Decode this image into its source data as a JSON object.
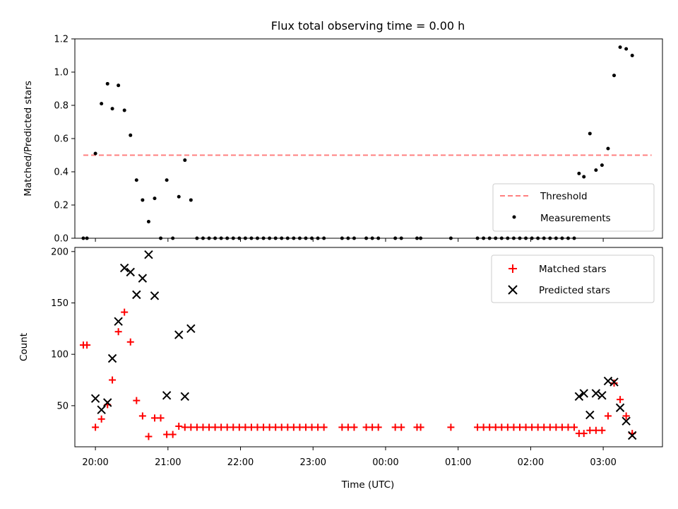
{
  "chart_data": [
    {
      "type": "scatter",
      "title": "Flux total observing time = 0.00 h",
      "xlabel": "",
      "ylabel": "Matched/Predicted stars",
      "xlim": [
        "19:43",
        "03:49"
      ],
      "ylim": [
        0,
        1.2
      ],
      "yticks": [
        "0.0",
        "0.2",
        "0.4",
        "0.6",
        "0.8",
        "1.0",
        "1.2"
      ],
      "x_tick_positions": [
        "20:00",
        "21:00",
        "22:00",
        "23:00",
        "00:00",
        "01:00",
        "02:00",
        "03:00"
      ],
      "grid": false,
      "legend_position": "lower-right",
      "threshold": {
        "name": "Threshold",
        "value": 0.5,
        "x_start": "19:50",
        "x_end": "03:40",
        "color": "#ff8080"
      },
      "series": [
        {
          "name": "Measurements",
          "color": "#000000",
          "points": [
            [
              "19:50",
              0
            ],
            [
              "19:53",
              0
            ],
            [
              "20:00",
              0.51
            ],
            [
              "20:05",
              0.81
            ],
            [
              "20:10",
              0.93
            ],
            [
              "20:14",
              0.78
            ],
            [
              "20:19",
              0.92
            ],
            [
              "20:24",
              0.77
            ],
            [
              "20:29",
              0.62
            ],
            [
              "20:34",
              0.35
            ],
            [
              "20:39",
              0.23
            ],
            [
              "20:44",
              0.1
            ],
            [
              "20:49",
              0.24
            ],
            [
              "20:54",
              0
            ],
            [
              "20:59",
              0.35
            ],
            [
              "21:04",
              0
            ],
            [
              "21:09",
              0.25
            ],
            [
              "21:14",
              0.47
            ],
            [
              "21:19",
              0.23
            ],
            [
              "21:24",
              0
            ],
            [
              "21:29",
              0
            ],
            [
              "21:34",
              0
            ],
            [
              "21:39",
              0
            ],
            [
              "21:44",
              0
            ],
            [
              "21:49",
              0
            ],
            [
              "21:54",
              0
            ],
            [
              "21:59",
              0
            ],
            [
              "22:04",
              0
            ],
            [
              "22:09",
              0
            ],
            [
              "22:14",
              0
            ],
            [
              "22:19",
              0
            ],
            [
              "22:24",
              0
            ],
            [
              "22:29",
              0
            ],
            [
              "22:34",
              0
            ],
            [
              "22:39",
              0
            ],
            [
              "22:44",
              0
            ],
            [
              "22:49",
              0
            ],
            [
              "22:54",
              0
            ],
            [
              "22:59",
              0
            ],
            [
              "23:04",
              0
            ],
            [
              "23:09",
              0
            ],
            [
              "23:24",
              0
            ],
            [
              "23:29",
              0
            ],
            [
              "23:34",
              0
            ],
            [
              "23:44",
              0
            ],
            [
              "23:49",
              0
            ],
            [
              "23:54",
              0
            ],
            [
              "00:08",
              0
            ],
            [
              "00:13",
              0
            ],
            [
              "00:26",
              0
            ],
            [
              "00:29",
              0
            ],
            [
              "00:54",
              0
            ],
            [
              "01:16",
              0
            ],
            [
              "01:21",
              0
            ],
            [
              "01:26",
              0
            ],
            [
              "01:31",
              0
            ],
            [
              "01:36",
              0
            ],
            [
              "01:41",
              0
            ],
            [
              "01:46",
              0
            ],
            [
              "01:51",
              0
            ],
            [
              "01:56",
              0
            ],
            [
              "02:01",
              0
            ],
            [
              "02:06",
              0
            ],
            [
              "02:11",
              0
            ],
            [
              "02:16",
              0
            ],
            [
              "02:21",
              0
            ],
            [
              "02:26",
              0
            ],
            [
              "02:31",
              0
            ],
            [
              "02:36",
              0
            ],
            [
              "02:40",
              0.39
            ],
            [
              "02:44",
              0.37
            ],
            [
              "02:49",
              0.63
            ],
            [
              "02:54",
              0.41
            ],
            [
              "02:59",
              0.44
            ],
            [
              "03:04",
              0.54
            ],
            [
              "03:09",
              0.98
            ],
            [
              "03:14",
              1.15
            ],
            [
              "03:19",
              1.14
            ],
            [
              "03:24",
              1.1
            ]
          ]
        }
      ]
    },
    {
      "type": "scatter",
      "title": "",
      "xlabel": "Time (UTC)",
      "ylabel": "Count",
      "xlim": [
        "19:43",
        "03:49"
      ],
      "ylim": [
        10,
        204
      ],
      "yticks": [
        "50",
        "100",
        "150",
        "200"
      ],
      "xticks": [
        "20:00",
        "21:00",
        "22:00",
        "23:00",
        "00:00",
        "01:00",
        "02:00",
        "03:00"
      ],
      "grid": false,
      "legend_position": "upper-right",
      "series": [
        {
          "name": "Matched stars",
          "color": "#ff0000",
          "marker": "plus",
          "points": [
            [
              "19:50",
              109
            ],
            [
              "19:53",
              109
            ],
            [
              "20:00",
              29
            ],
            [
              "20:05",
              37
            ],
            [
              "20:10",
              51
            ],
            [
              "20:14",
              75
            ],
            [
              "20:19",
              122
            ],
            [
              "20:24",
              141
            ],
            [
              "20:29",
              112
            ],
            [
              "20:34",
              55
            ],
            [
              "20:39",
              40
            ],
            [
              "20:44",
              20
            ],
            [
              "20:49",
              38
            ],
            [
              "20:54",
              38
            ],
            [
              "20:59",
              22
            ],
            [
              "21:04",
              22
            ],
            [
              "21:09",
              30
            ],
            [
              "21:14",
              29
            ],
            [
              "21:19",
              29
            ],
            [
              "21:24",
              29
            ],
            [
              "21:29",
              29
            ],
            [
              "21:34",
              29
            ],
            [
              "21:39",
              29
            ],
            [
              "21:44",
              29
            ],
            [
              "21:49",
              29
            ],
            [
              "21:54",
              29
            ],
            [
              "21:59",
              29
            ],
            [
              "22:04",
              29
            ],
            [
              "22:09",
              29
            ],
            [
              "22:14",
              29
            ],
            [
              "22:19",
              29
            ],
            [
              "22:24",
              29
            ],
            [
              "22:29",
              29
            ],
            [
              "22:34",
              29
            ],
            [
              "22:39",
              29
            ],
            [
              "22:44",
              29
            ],
            [
              "22:49",
              29
            ],
            [
              "22:54",
              29
            ],
            [
              "22:59",
              29
            ],
            [
              "23:04",
              29
            ],
            [
              "23:09",
              29
            ],
            [
              "23:24",
              29
            ],
            [
              "23:29",
              29
            ],
            [
              "23:34",
              29
            ],
            [
              "23:44",
              29
            ],
            [
              "23:49",
              29
            ],
            [
              "23:54",
              29
            ],
            [
              "00:08",
              29
            ],
            [
              "00:13",
              29
            ],
            [
              "00:26",
              29
            ],
            [
              "00:29",
              29
            ],
            [
              "00:54",
              29
            ],
            [
              "01:16",
              29
            ],
            [
              "01:21",
              29
            ],
            [
              "01:26",
              29
            ],
            [
              "01:31",
              29
            ],
            [
              "01:36",
              29
            ],
            [
              "01:41",
              29
            ],
            [
              "01:46",
              29
            ],
            [
              "01:51",
              29
            ],
            [
              "01:56",
              29
            ],
            [
              "02:01",
              29
            ],
            [
              "02:06",
              29
            ],
            [
              "02:11",
              29
            ],
            [
              "02:16",
              29
            ],
            [
              "02:21",
              29
            ],
            [
              "02:26",
              29
            ],
            [
              "02:31",
              29
            ],
            [
              "02:36",
              29
            ],
            [
              "02:40",
              23
            ],
            [
              "02:44",
              23
            ],
            [
              "02:49",
              26
            ],
            [
              "02:54",
              26
            ],
            [
              "02:59",
              26
            ],
            [
              "03:04",
              40
            ],
            [
              "03:09",
              72
            ],
            [
              "03:14",
              56
            ],
            [
              "03:19",
              40
            ],
            [
              "03:24",
              23
            ]
          ]
        },
        {
          "name": "Predicted stars",
          "color": "#000000",
          "marker": "x",
          "points": [
            [
              "20:00",
              57
            ],
            [
              "20:05",
              46
            ],
            [
              "20:10",
              53
            ],
            [
              "20:14",
              96
            ],
            [
              "20:19",
              132
            ],
            [
              "20:24",
              184
            ],
            [
              "20:29",
              180
            ],
            [
              "20:34",
              158
            ],
            [
              "20:39",
              174
            ],
            [
              "20:44",
              197
            ],
            [
              "20:49",
              157
            ],
            [
              "20:59",
              60
            ],
            [
              "21:09",
              119
            ],
            [
              "21:14",
              59
            ],
            [
              "21:19",
              125
            ],
            [
              "02:40",
              59
            ],
            [
              "02:44",
              62
            ],
            [
              "02:49",
              41
            ],
            [
              "02:54",
              62
            ],
            [
              "02:59",
              60
            ],
            [
              "03:04",
              74
            ],
            [
              "03:09",
              73
            ],
            [
              "03:14",
              48
            ],
            [
              "03:19",
              35
            ],
            [
              "03:24",
              21
            ]
          ]
        }
      ]
    }
  ]
}
